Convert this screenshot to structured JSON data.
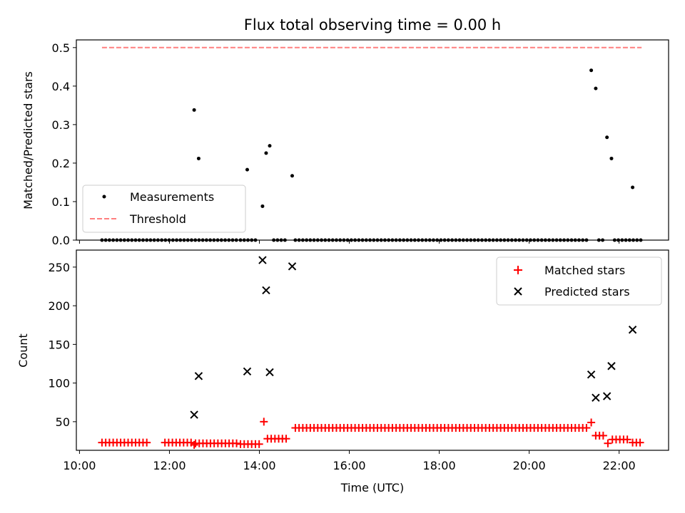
{
  "chart_data": {
    "title": "Flux total observing time = 0.00 h",
    "xlabel": "Time (UTC)",
    "x_ticks": [
      "10:00",
      "12:00",
      "14:00",
      "16:00",
      "18:00",
      "20:00",
      "22:00"
    ],
    "x_tick_hours": [
      10,
      12,
      14,
      16,
      18,
      20,
      22
    ],
    "xlim_hours": [
      9.93,
      23.1
    ],
    "panels": [
      {
        "type": "scatter",
        "ylabel": "Matched/Predicted stars",
        "ylim": [
          0,
          0.52
        ],
        "y_ticks": [
          "0.0",
          "0.1",
          "0.2",
          "0.3",
          "0.4",
          "0.5"
        ],
        "y_tick_values": [
          0,
          0.1,
          0.2,
          0.3,
          0.4,
          0.5
        ],
        "legend_position": "lower-left",
        "series": [
          {
            "name": "Measurements",
            "color": "#000000",
            "marker": "dot",
            "points": [
              [
                12.55,
                0.338
              ],
              [
                12.65,
                0.212
              ],
              [
                13.73,
                0.183
              ],
              [
                14.07,
                0.088
              ],
              [
                14.15,
                0.226
              ],
              [
                14.23,
                0.245
              ],
              [
                14.73,
                0.167
              ],
              [
                21.38,
                0.441
              ],
              [
                21.48,
                0.394
              ],
              [
                21.73,
                0.267
              ],
              [
                21.83,
                0.212
              ],
              [
                22.3,
                0.137
              ]
            ],
            "zero_runs": [
              [
                10.5,
                13.5
              ],
              [
                13.58,
                13.95
              ],
              [
                14.32,
                14.65
              ],
              [
                14.8,
                21.28
              ],
              [
                21.55,
                21.68
              ],
              [
                21.9,
                22.5
              ]
            ]
          },
          {
            "name": "Threshold",
            "color": "#ff7f7f",
            "style": "dashed",
            "x_range": [
              10.5,
              22.5
            ],
            "y": 0.5
          }
        ]
      },
      {
        "type": "scatter",
        "ylabel": "Count",
        "ylim": [
          13,
          272
        ],
        "y_ticks": [
          "50",
          "100",
          "150",
          "200",
          "250"
        ],
        "y_tick_values": [
          50,
          100,
          150,
          200,
          250
        ],
        "legend_position": "upper-right",
        "series": [
          {
            "name": "Matched stars",
            "color": "#ff0000",
            "marker": "plus",
            "segments": [
              {
                "x0": 10.5,
                "x1": 11.5,
                "y": 23
              },
              {
                "x0": 11.9,
                "x1": 12.5,
                "y": 23
              },
              {
                "x0": 12.58,
                "x1": 13.5,
                "y": 22
              },
              {
                "x0": 13.58,
                "x1": 14.0,
                "y": 21
              },
              {
                "x0": 14.18,
                "x1": 14.65,
                "y": 28
              },
              {
                "x0": 14.8,
                "x1": 21.28,
                "y": 42
              },
              {
                "x0": 21.48,
                "x1": 21.7,
                "y": 32
              },
              {
                "x0": 21.85,
                "x1": 22.2,
                "y": 27
              },
              {
                "x0": 22.3,
                "x1": 22.5,
                "y": 23
              }
            ],
            "points": [
              [
                12.55,
                20
              ],
              [
                14.1,
                50
              ],
              [
                21.38,
                49
              ],
              [
                21.75,
                22
              ]
            ]
          },
          {
            "name": "Predicted stars",
            "color": "#000000",
            "marker": "x",
            "points": [
              [
                12.55,
                59
              ],
              [
                12.65,
                109
              ],
              [
                13.73,
                115
              ],
              [
                14.07,
                259
              ],
              [
                14.15,
                220
              ],
              [
                14.23,
                114
              ],
              [
                14.73,
                251
              ],
              [
                21.38,
                111
              ],
              [
                21.48,
                81
              ],
              [
                21.73,
                83
              ],
              [
                21.83,
                122
              ],
              [
                22.3,
                169
              ]
            ]
          }
        ]
      }
    ]
  }
}
